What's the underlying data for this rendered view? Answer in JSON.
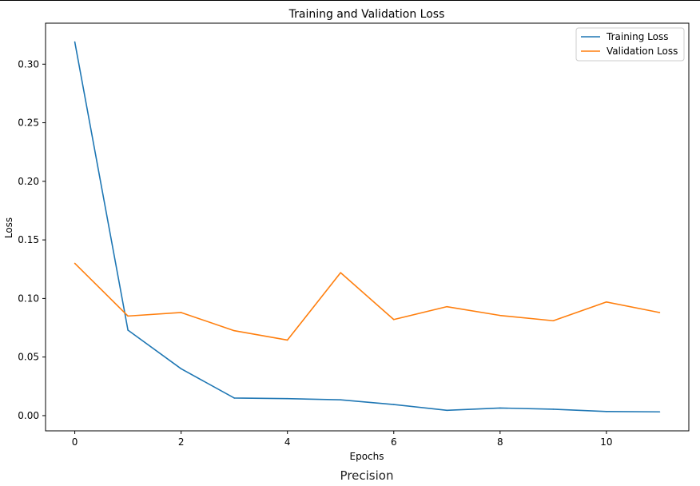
{
  "caption": "Precision",
  "chart_data": {
    "type": "line",
    "title": "Training and Validation Loss",
    "xlabel": "Epochs",
    "ylabel": "Loss",
    "x": [
      0,
      1,
      2,
      3,
      4,
      5,
      6,
      7,
      8,
      9,
      10,
      11
    ],
    "xlim": [
      -0.55,
      11.55
    ],
    "ylim": [
      -0.013,
      0.335
    ],
    "xticks": [
      0,
      2,
      4,
      6,
      8,
      10
    ],
    "yticks": [
      0.0,
      0.05,
      0.1,
      0.15,
      0.2,
      0.25,
      0.3
    ],
    "ytick_labels": [
      "0.00",
      "0.05",
      "0.10",
      "0.15",
      "0.20",
      "0.25",
      "0.30"
    ],
    "grid": false,
    "legend_position": "top-right",
    "series": [
      {
        "name": "Training Loss",
        "color": "#1f77b4",
        "values": [
          0.319,
          0.073,
          0.04,
          0.015,
          0.0145,
          0.0135,
          0.0095,
          0.0045,
          0.0065,
          0.0055,
          0.0035,
          0.0032
        ]
      },
      {
        "name": "Validation Loss",
        "color": "#ff7f0e",
        "values": [
          0.13,
          0.085,
          0.088,
          0.0725,
          0.0645,
          0.122,
          0.082,
          0.093,
          0.0855,
          0.081,
          0.097,
          0.088
        ]
      }
    ]
  }
}
